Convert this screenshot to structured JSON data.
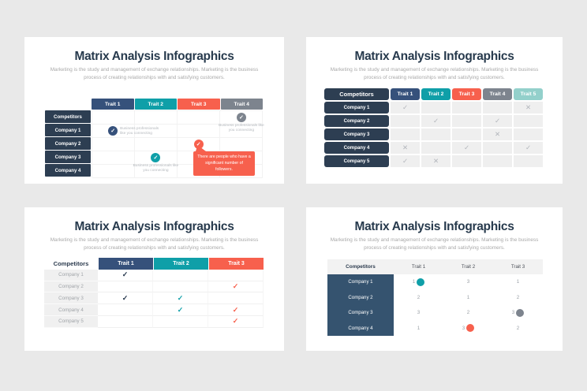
{
  "colors": {
    "background": "#e9e9e9",
    "card": "#ffffff",
    "navy_pill": "#2d3e52",
    "navy_block": "#35536f",
    "title_text": "#273a4d",
    "subtitle_text": "#a9a9a9",
    "trait_blue": "#36517b",
    "trait_teal": "#0f9fa8",
    "trait_coral": "#f7604d",
    "trait_gray": "#7d848e",
    "trait_aqua": "#93d0cb",
    "cell_gray": "#efefef",
    "mark_gray": "#b2b6bc",
    "muted_text": "#9aa0a6"
  },
  "glyphs": {
    "check": "✓",
    "cross": "✕"
  },
  "slides": [
    {
      "name": "callout-matrix",
      "title": "Matrix Analysis Infographics",
      "subtitle_line1": "Marketing is the study and management of exchange relationships. Marketing is the business",
      "subtitle_line2": "process of creating relationships with and satisfying customers.",
      "traits": [
        "Trait 1",
        "Trait 2",
        "Trait 3",
        "Trait 4"
      ],
      "trait_colors": [
        "#36517b",
        "#0f9fa8",
        "#f7604d",
        "#7d848e"
      ],
      "rows": [
        "Competitors",
        "Company 1",
        "Company 2",
        "Company 3",
        "Company 4"
      ],
      "marks": [
        {
          "row": 0,
          "col": 3,
          "color": "#7d848e",
          "caption": "Business professionals like you connecting",
          "caption_pos": "below"
        },
        {
          "row": 1,
          "col": 0,
          "color": "#36517b",
          "caption": "Business professionals like you connecting",
          "caption_pos": "right"
        },
        {
          "row": 2,
          "col": 2,
          "color": "#f7604d",
          "callout": "There are people who have a significant number of followers."
        },
        {
          "row": 3,
          "col": 1,
          "color": "#0f9fa8",
          "caption": "Business professionals like you connecting",
          "caption_pos": "below"
        }
      ]
    },
    {
      "name": "check-grid",
      "title": "Matrix Analysis Infographics",
      "subtitle_line1": "Marketing is the study and management of exchange relationships. Marketing is the business",
      "subtitle_line2": "process of creating relationships with and satisfying customers.",
      "corner": "Competitors",
      "traits": [
        "Trait 1",
        "Trait 2",
        "Trait 3",
        "Trait 4",
        "Trait 5"
      ],
      "trait_colors": [
        "#36517b",
        "#0f9fa8",
        "#f7604d",
        "#7d848e",
        "#93d0cb"
      ],
      "rows": [
        "Company 1",
        "Company 2",
        "Company 3",
        "Company 4",
        "Company 5"
      ],
      "cells": [
        [
          "check",
          "",
          "",
          "",
          "cross"
        ],
        [
          "",
          "check",
          "",
          "check",
          ""
        ],
        [
          "",
          "",
          "",
          "cross",
          ""
        ],
        [
          "cross",
          "",
          "check",
          "",
          "check"
        ],
        [
          "check",
          "cross",
          "",
          "",
          ""
        ]
      ]
    },
    {
      "name": "colored-check-table",
      "title": "Matrix Analysis Infographics",
      "subtitle_line1": "Marketing is the study and management of exchange relationships. Marketing is the business",
      "subtitle_line2": "process of creating relationships with and satisfying customers.",
      "corner": "Competitors",
      "traits": [
        "Trait 1",
        "Trait 2",
        "Trait 3"
      ],
      "trait_colors": [
        "#36517b",
        "#0f9fa8",
        "#f7604d"
      ],
      "check_colors": [
        "#22344a",
        "#0f9fa8",
        "#f7604d"
      ],
      "rows": [
        "Company 1",
        "Company 2",
        "Company 3",
        "Company 4",
        "Company 5"
      ],
      "cells": [
        [
          "check",
          "",
          ""
        ],
        [
          "",
          "",
          "check"
        ],
        [
          "check",
          "check",
          ""
        ],
        [
          "",
          "check",
          "check"
        ],
        [
          "",
          "",
          "check"
        ]
      ]
    },
    {
      "name": "score-matrix",
      "title": "Matrix Analysis Infographics",
      "subtitle_line1": "Marketing is the study and management of exchange relationships. Marketing is the business",
      "subtitle_line2": "process of creating relationships with and satisfying customers.",
      "corner": "Competitors",
      "traits": [
        "Trait 1",
        "Trait 2",
        "Trait 3"
      ],
      "rows": [
        "Company 1",
        "Company 2",
        "Company 3",
        "Company 4"
      ],
      "cells": [
        [
          {
            "value": "1",
            "dot": "#0f9fa8"
          },
          {
            "value": "3"
          },
          {
            "value": "1"
          }
        ],
        [
          {
            "value": "2"
          },
          {
            "value": "1"
          },
          {
            "value": "2"
          }
        ],
        [
          {
            "value": "3"
          },
          {
            "value": "2"
          },
          {
            "value": "3",
            "dot": "#7d848e"
          }
        ],
        [
          {
            "value": "1"
          },
          {
            "value": "3",
            "dot": "#f7604d"
          },
          {
            "value": "2"
          }
        ]
      ]
    }
  ]
}
